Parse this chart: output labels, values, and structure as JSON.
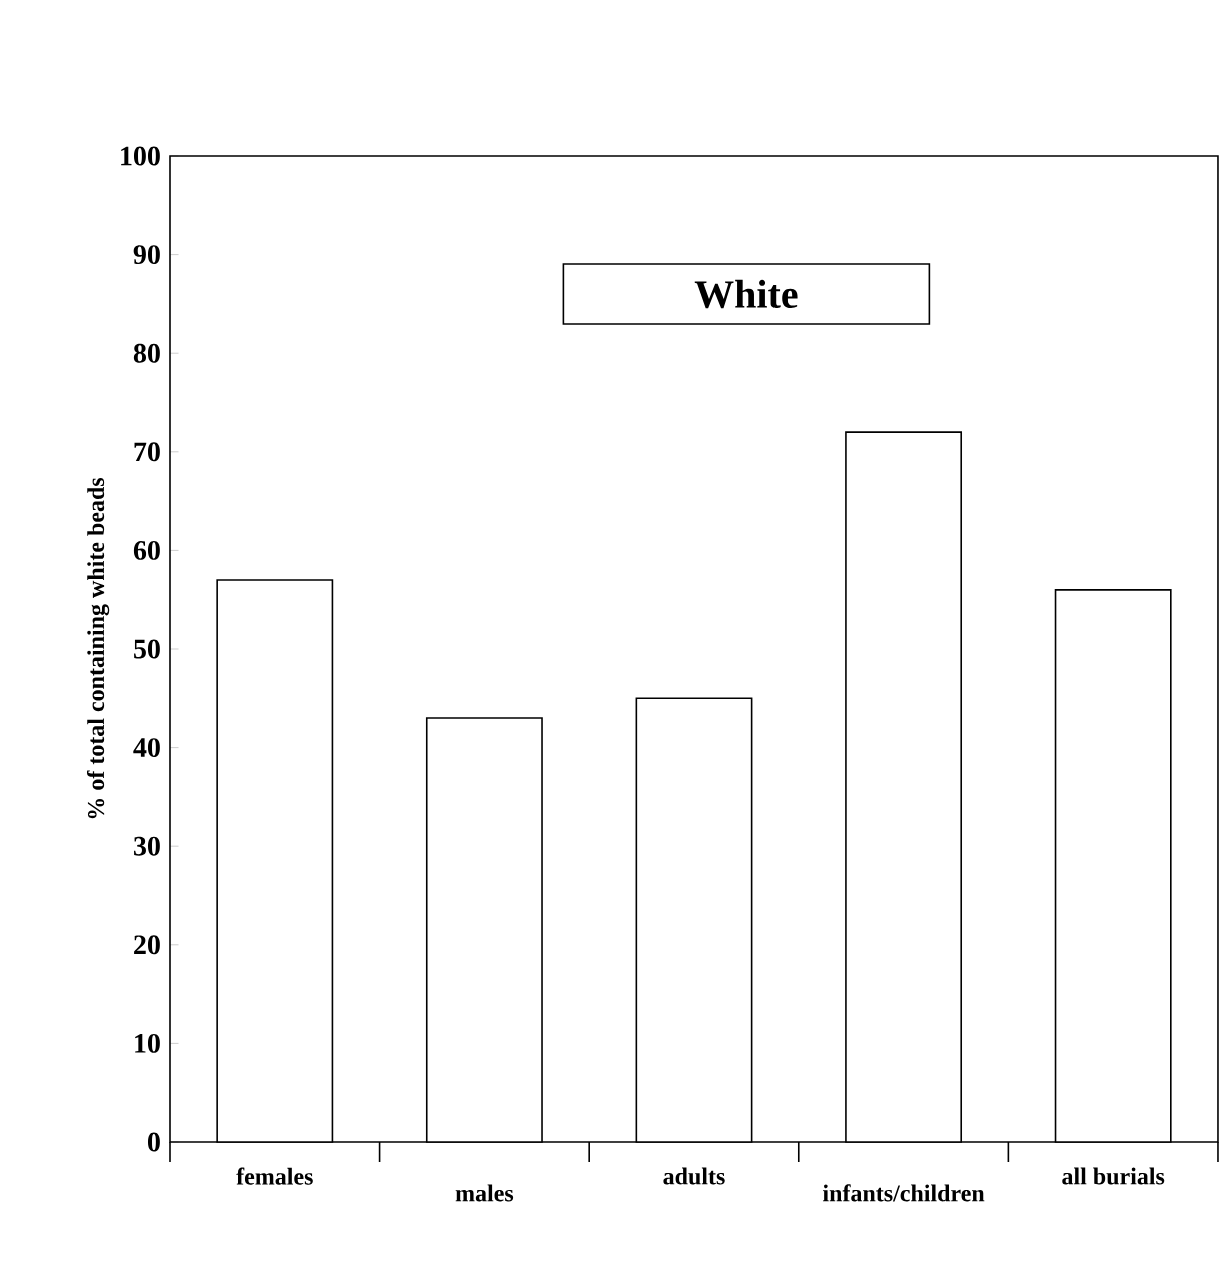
{
  "chart_data": {
    "type": "bar",
    "title": "White",
    "ylabel": "% of total containing white beads",
    "categories": [
      "females",
      "males",
      "adults",
      "infants/children",
      "all burials"
    ],
    "values": [
      57,
      43,
      45,
      72,
      56
    ],
    "color": "#ffffff",
    "ylim": [
      0,
      100
    ],
    "yticks": [
      0,
      10,
      20,
      30,
      40,
      50,
      60,
      70,
      80,
      90,
      100
    ],
    "grid": false
  }
}
